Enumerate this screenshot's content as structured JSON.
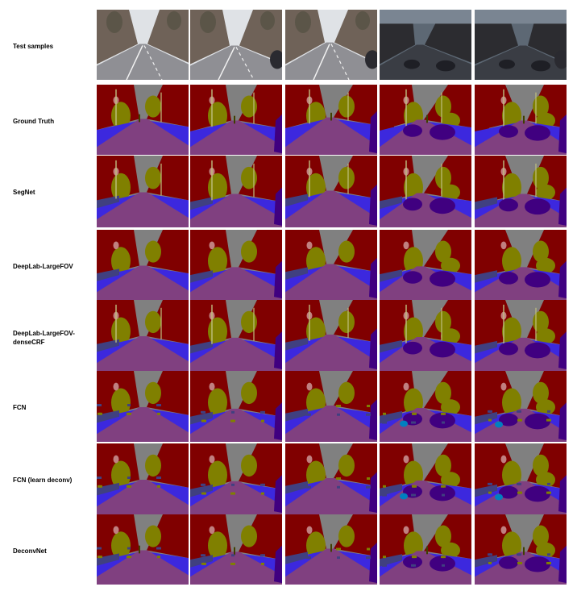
{
  "figure": {
    "rows": [
      {
        "label": "Test samples",
        "kind": "photo"
      },
      {
        "label": "Ground Truth",
        "kind": "gt"
      },
      {
        "label": "SegNet",
        "kind": "segnet"
      },
      {
        "label": "DeepLab-LargeFOV",
        "kind": "deeplab"
      },
      {
        "label": "DeepLab-LargeFOV-\ndenseCRF",
        "kind": "deeplabcrf"
      },
      {
        "label": "FCN",
        "kind": "fcn"
      },
      {
        "label": "FCN (learn deconv)",
        "kind": "fcndeconv"
      },
      {
        "label": "DeconvNet",
        "kind": "deconvnet"
      }
    ],
    "columns": 5,
    "class_colors": {
      "sky": "#808080",
      "building": "#800000",
      "pole": "#c0c080",
      "road": "#804080",
      "pavement": "#3c28de",
      "tree": "#808000",
      "sign_symbol": "#c08080",
      "fence": "#404080",
      "car": "#400080",
      "pedestrian": "#404000",
      "bicyclist": "#0080c0"
    },
    "photo_colors": {
      "sky_day": "#dfe2e6",
      "sky_dusk": "#5d6874",
      "road_day": "#8f8f94",
      "road_dusk": "#3a3d44",
      "building_day": "#6f6258",
      "building_dusk": "#2c2c30",
      "tree_day": "#5b5548",
      "line": "#f2f2f2"
    }
  }
}
